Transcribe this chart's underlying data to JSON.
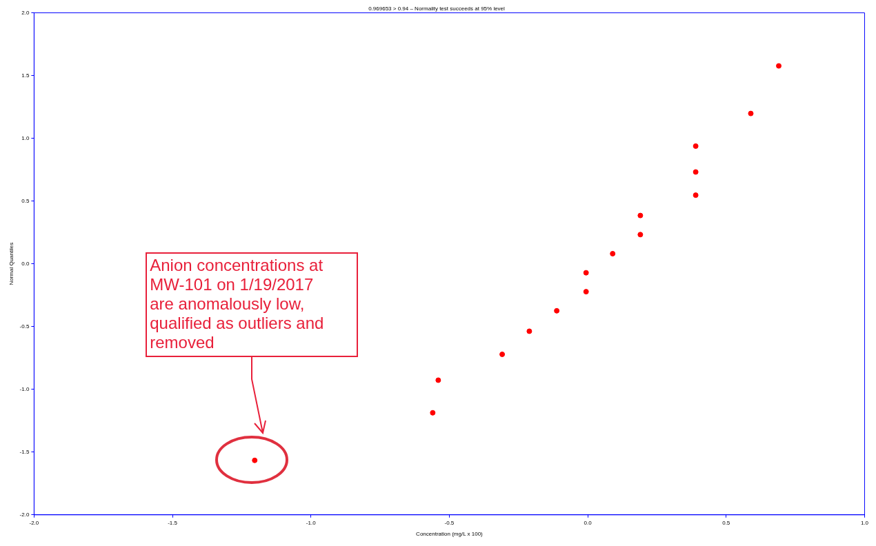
{
  "chart_data": {
    "type": "scatter",
    "title": "0.969653 > 0.94 – Normality test succeeds at 95% level",
    "xlabel": "Concentration (mg/L x 100)",
    "ylabel": "Normal Quantiles",
    "x": [
      0.69,
      0.589,
      0.39,
      0.39,
      0.39,
      0.19,
      0.19,
      0.09,
      -0.006,
      -0.006,
      -0.112,
      -0.211,
      -0.309,
      -0.54,
      -0.56,
      -1.203
    ],
    "series": [
      {
        "color": "#ff0000",
        "values": [
          1.577,
          1.198,
          0.938,
          0.732,
          0.547,
          0.385,
          0.233,
          0.081,
          -0.071,
          -0.222,
          -0.374,
          -0.537,
          -0.721,
          -0.927,
          -1.187,
          -1.566
        ]
      }
    ],
    "marker": "circle",
    "grid": false,
    "legend": false,
    "xlim": [
      -2,
      1
    ],
    "xticks": [
      {
        "value": -2,
        "label": "-2.0"
      },
      {
        "value": -1.5,
        "label": "-1.5"
      },
      {
        "value": -1,
        "label": "-1.0"
      },
      {
        "value": -0.5,
        "label": "-0.5"
      },
      {
        "value": 0,
        "label": "0.0"
      },
      {
        "value": 0.5,
        "label": "0.5"
      },
      {
        "value": 1,
        "label": "1.0"
      }
    ],
    "ylim": [
      -2,
      2
    ],
    "yticks": [
      {
        "value": -2,
        "label": "-2.0"
      },
      {
        "value": -1.5,
        "label": "-1.5"
      },
      {
        "value": -1,
        "label": "-1.0"
      },
      {
        "value": -0.5,
        "label": "-0.5"
      },
      {
        "value": 0,
        "label": "0.0"
      },
      {
        "value": 0.5,
        "label": "0.5"
      },
      {
        "value": 1,
        "label": "1.0"
      },
      {
        "value": 1.5,
        "label": "1.5"
      },
      {
        "value": 2,
        "label": "2.0"
      }
    ],
    "annotations": [
      "Anion concentrations at MW-101 on 1/19/2017 are anomalously low, qualified as outliers and removed"
    ]
  }
}
